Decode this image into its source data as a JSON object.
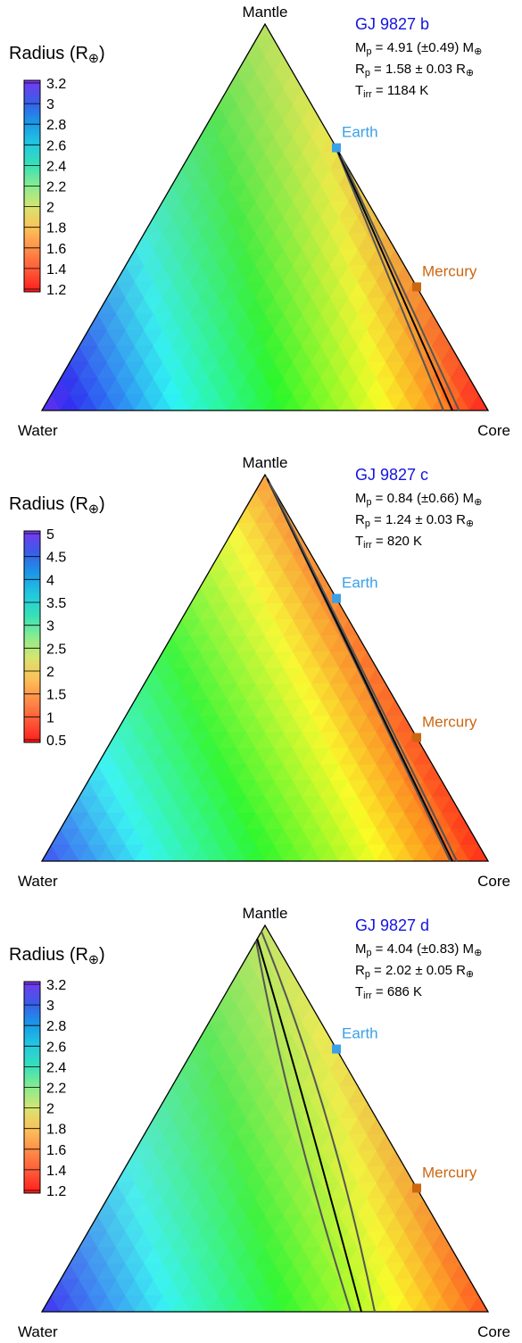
{
  "chart_data": [
    {
      "type": "ternary",
      "title": "GJ 9827 b",
      "parameters": [
        [
          {
            "text": "M"
          },
          {
            "sub": "p"
          },
          {
            "text": " = 4.91 (±0.49) M"
          },
          {
            "sub": "⊕"
          }
        ],
        [
          {
            "text": "R"
          },
          {
            "sub": "p"
          },
          {
            "text": " = 1.58 ± 0.03 R"
          },
          {
            "sub": "⊕"
          }
        ],
        [
          {
            "text": "T"
          },
          {
            "sub": "irr"
          },
          {
            "text": " = 1184 K"
          }
        ]
      ],
      "corners": {
        "top": "Mantle",
        "left": "Water",
        "right": "Core"
      },
      "corner_colors": {
        "left": "#6a30f0",
        "top": "#b8e060",
        "right": "#ff2020"
      },
      "colorbar": {
        "label": [
          {
            "text": "Radius (R"
          },
          {
            "sub": "⊕"
          },
          {
            "text": ")"
          }
        ],
        "lim": [
          1.2,
          3.2
        ],
        "ticks": [
          3.2,
          3,
          2.8,
          2.6,
          2.4,
          2.2,
          2,
          1.8,
          1.6,
          1.4,
          1.2
        ],
        "colors": [
          "#7a38f0",
          "#3a5ce8",
          "#1a98e8",
          "#22c8e0",
          "#38e0b8",
          "#88ec90",
          "#d8e470",
          "#fcc058",
          "#ff8c48",
          "#ff5838",
          "#ff1c1c"
        ]
      },
      "markers": [
        {
          "name": "Earth",
          "core": 0.32,
          "color": "#3aa0e8"
        },
        {
          "name": "Mercury",
          "core": 0.68,
          "color": "#cc6610"
        }
      ],
      "curves": [
        {
          "color": "#555555",
          "points": [
            [
              0,
              0.31
            ],
            [
              0.1,
              0.9
            ]
          ]
        },
        {
          "color": "#000000",
          "points": [
            [
              0,
              0.32
            ],
            [
              0.08,
              0.92
            ]
          ]
        },
        {
          "color": "#555555",
          "points": [
            [
              0,
              0.34
            ],
            [
              0.065,
              0.935
            ]
          ]
        }
      ]
    },
    {
      "type": "ternary",
      "title": "GJ 9827 c",
      "parameters": [
        [
          {
            "text": "M"
          },
          {
            "sub": "p"
          },
          {
            "text": " = 0.84 (±0.66) M"
          },
          {
            "sub": "⊕"
          }
        ],
        [
          {
            "text": "R"
          },
          {
            "sub": "p"
          },
          {
            "text": " = 1.24 ± 0.03 R"
          },
          {
            "sub": "⊕"
          }
        ],
        [
          {
            "text": "T"
          },
          {
            "sub": "irr"
          },
          {
            "text": " = 820 K"
          }
        ]
      ],
      "corners": {
        "top": "Mantle",
        "left": "Water",
        "right": "Core"
      },
      "corner_colors": {
        "left": "#4050f0",
        "top": "#f8a040",
        "right": "#ff2818"
      },
      "colorbar": {
        "label": [
          {
            "text": "Radius (R"
          },
          {
            "sub": "⊕"
          },
          {
            "text": ")"
          }
        ],
        "lim": [
          0.5,
          5
        ],
        "ticks": [
          5,
          4.5,
          4,
          3.5,
          3,
          2.5,
          2,
          1.5,
          1,
          0.5
        ],
        "colors": [
          "#7a38f0",
          "#3a5ce8",
          "#1a98e8",
          "#22c8e0",
          "#38e0b8",
          "#88ec90",
          "#d8e470",
          "#fcc058",
          "#ff8c48",
          "#ff5838",
          "#ff1c1c"
        ]
      },
      "markers": [
        {
          "name": "Earth",
          "core": 0.32,
          "color": "#3aa0e8"
        },
        {
          "name": "Mercury",
          "core": 0.68,
          "color": "#cc6610"
        }
      ],
      "curves": [
        {
          "color": "#555555",
          "points": [
            [
              0,
              0.005
            ],
            [
              0.085,
              0.915
            ]
          ]
        },
        {
          "color": "#000000",
          "points": [
            [
              0,
              0.01
            ],
            [
              0.08,
              0.92
            ]
          ]
        },
        {
          "color": "#555555",
          "points": [
            [
              0,
              0.02
            ],
            [
              0.07,
              0.93
            ]
          ]
        }
      ]
    },
    {
      "type": "ternary",
      "title": "GJ 9827 d",
      "parameters": [
        [
          {
            "text": "M"
          },
          {
            "sub": "p"
          },
          {
            "text": " = 4.04 (±0.83) M"
          },
          {
            "sub": "⊕"
          }
        ],
        [
          {
            "text": "R"
          },
          {
            "sub": "p"
          },
          {
            "text": " = 2.02 ± 0.05 R"
          },
          {
            "sub": "⊕"
          }
        ],
        [
          {
            "text": "T"
          },
          {
            "sub": "irr"
          },
          {
            "text": " = 686 K"
          }
        ]
      ],
      "corners": {
        "top": "Mantle",
        "left": "Water",
        "right": "Core"
      },
      "corner_colors": {
        "left": "#5040f0",
        "top": "#c8e468",
        "right": "#ff5020"
      },
      "colorbar": {
        "label": [
          {
            "text": "Radius (R"
          },
          {
            "sub": "⊕"
          },
          {
            "text": ")"
          }
        ],
        "lim": [
          1.2,
          3.2
        ],
        "ticks": [
          3.2,
          3,
          2.8,
          2.6,
          2.4,
          2.2,
          2,
          1.8,
          1.6,
          1.4,
          1.2
        ],
        "colors": [
          "#7a38f0",
          "#3a5ce8",
          "#1a98e8",
          "#22c8e0",
          "#38e0b8",
          "#88ec90",
          "#d8e470",
          "#fcc058",
          "#ff8c48",
          "#ff5838",
          "#ff1c1c"
        ]
      },
      "markers": [
        {
          "name": "Earth",
          "core": 0.32,
          "color": "#3aa0e8"
        },
        {
          "name": "Mercury",
          "core": 0.68,
          "color": "#cc6610"
        }
      ],
      "curves": [
        {
          "color": "#555555",
          "points": [
            [
              0.04,
              0
            ],
            [
              0.18,
              0.312
            ],
            [
              0.308,
              0.692
            ]
          ]
        },
        {
          "color": "#000000",
          "points": [
            [
              0.035,
              0
            ],
            [
              0.15,
              0.342
            ],
            [
              0.284,
              0.716
            ]
          ]
        },
        {
          "color": "#555555",
          "points": [
            [
              0.016,
              0
            ],
            [
              0.11,
              0.382
            ],
            [
              0.254,
              0.746
            ]
          ]
        }
      ]
    }
  ]
}
